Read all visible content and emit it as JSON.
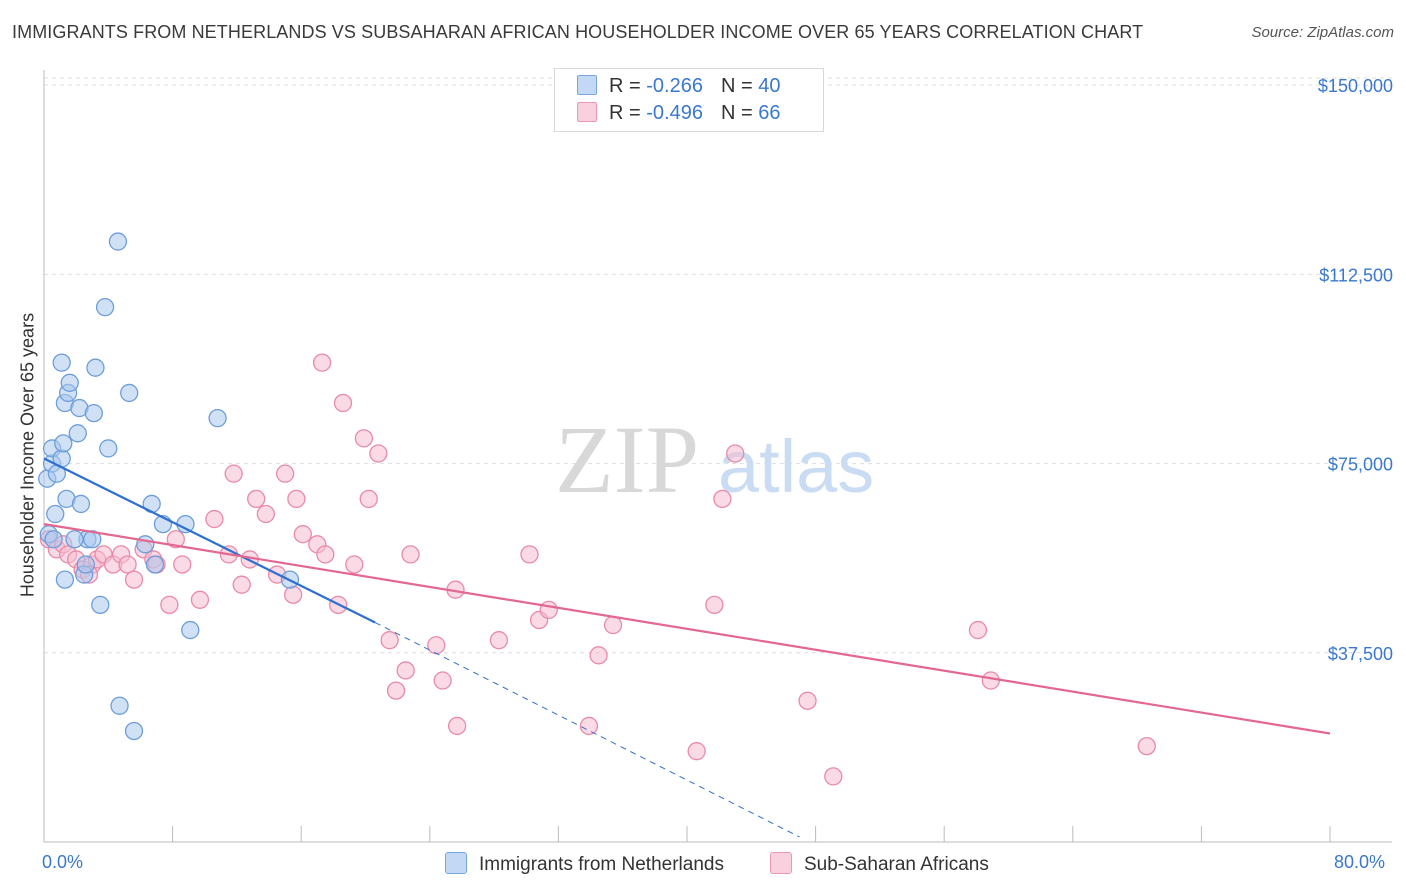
{
  "header": {
    "title": "IMMIGRANTS FROM NETHERLANDS VS SUBSAHARAN AFRICAN HOUSEHOLDER INCOME OVER 65 YEARS CORRELATION CHART",
    "source": "Source: ZipAtlas.com"
  },
  "watermark": {
    "zip": "ZIP",
    "atlas": "atlas"
  },
  "colors": {
    "blue_fill": "#aac8ef",
    "blue_stroke": "#6d9edb",
    "blue_line": "#2f6fd0",
    "pink_fill": "#f6bcd0",
    "pink_stroke": "#e98aa9",
    "pink_line": "#e3678f",
    "axis_text": "#3a78d0",
    "grid": "#dddddd"
  },
  "legend_top": {
    "rows": [
      {
        "r_label": "R = ",
        "r_value": "-0.266",
        "n_label": "N = ",
        "n_value": "40"
      },
      {
        "r_label": "R = ",
        "r_value": "-0.496",
        "n_label": "N = ",
        "n_value": "66"
      }
    ]
  },
  "legend_bottom": {
    "series_a": "Immigrants from Netherlands",
    "series_b": "Sub-Saharan Africans"
  },
  "chart_data": {
    "type": "scatter",
    "title": "IMMIGRANTS FROM NETHERLANDS VS SUBSAHARAN AFRICAN HOUSEHOLDER INCOME OVER 65 YEARS CORRELATION CHART",
    "xlabel": "",
    "ylabel": "Householder Income Over 65 years",
    "xlim": [
      0,
      80
    ],
    "ylim": [
      0,
      153000
    ],
    "x_tick_labels": [
      "0.0%",
      "80.0%"
    ],
    "y_ticks": [
      37500,
      75000,
      112500,
      150000
    ],
    "y_tick_labels": [
      "$37,500",
      "$75,000",
      "$112,500",
      "$150,000"
    ],
    "grid": true,
    "series": [
      {
        "name": "Immigrants from Netherlands",
        "color": "#aac8ef",
        "points": [
          [
            0.2,
            72000
          ],
          [
            0.3,
            61000
          ],
          [
            0.5,
            75000
          ],
          [
            0.5,
            78000
          ],
          [
            0.7,
            65000
          ],
          [
            0.8,
            73000
          ],
          [
            1.1,
            76000
          ],
          [
            1.2,
            79000
          ],
          [
            1.3,
            52000
          ],
          [
            1.4,
            68000
          ],
          [
            1.3,
            87000
          ],
          [
            1.5,
            89000
          ],
          [
            1.6,
            91000
          ],
          [
            1.1,
            95000
          ],
          [
            2.1,
            81000
          ],
          [
            2.2,
            86000
          ],
          [
            2.3,
            67000
          ],
          [
            2.5,
            53000
          ],
          [
            2.6,
            55000
          ],
          [
            2.7,
            60000
          ],
          [
            3.0,
            60000
          ],
          [
            3.1,
            85000
          ],
          [
            3.2,
            94000
          ],
          [
            3.5,
            47000
          ],
          [
            3.8,
            106000
          ],
          [
            4.0,
            78000
          ],
          [
            4.6,
            119000
          ],
          [
            4.7,
            27000
          ],
          [
            5.3,
            89000
          ],
          [
            5.6,
            22000
          ],
          [
            6.3,
            59000
          ],
          [
            6.7,
            67000
          ],
          [
            6.9,
            55000
          ],
          [
            7.4,
            63000
          ],
          [
            8.8,
            63000
          ],
          [
            9.1,
            42000
          ],
          [
            10.8,
            84000
          ],
          [
            15.3,
            52000
          ],
          [
            1.9,
            60000
          ],
          [
            0.6,
            60000
          ]
        ],
        "trend": {
          "x": [
            0.0,
            20.6
          ],
          "y": [
            76000,
            43500
          ]
        },
        "trend_ext": {
          "x": [
            20.6,
            47.0
          ],
          "y": [
            43500,
            1000
          ]
        }
      },
      {
        "name": "Sub-Saharan Africans",
        "color": "#f6bcd0",
        "points": [
          [
            0.3,
            60000
          ],
          [
            0.8,
            58000
          ],
          [
            1.2,
            59000
          ],
          [
            1.5,
            57000
          ],
          [
            2.0,
            56000
          ],
          [
            2.4,
            54000
          ],
          [
            3.0,
            55000
          ],
          [
            3.3,
            56000
          ],
          [
            3.7,
            57000
          ],
          [
            4.3,
            55000
          ],
          [
            4.8,
            57000
          ],
          [
            5.2,
            55000
          ],
          [
            5.6,
            52000
          ],
          [
            6.2,
            58000
          ],
          [
            6.8,
            56000
          ],
          [
            7.0,
            55000
          ],
          [
            7.8,
            47000
          ],
          [
            8.2,
            60000
          ],
          [
            8.6,
            55000
          ],
          [
            9.7,
            48000
          ],
          [
            10.6,
            64000
          ],
          [
            11.5,
            57000
          ],
          [
            11.8,
            73000
          ],
          [
            12.3,
            51000
          ],
          [
            12.8,
            56000
          ],
          [
            13.2,
            68000
          ],
          [
            13.8,
            65000
          ],
          [
            14.5,
            53000
          ],
          [
            15.0,
            73000
          ],
          [
            15.5,
            49000
          ],
          [
            15.7,
            68000
          ],
          [
            16.1,
            61000
          ],
          [
            17.0,
            59000
          ],
          [
            17.5,
            57000
          ],
          [
            18.3,
            47000
          ],
          [
            17.3,
            95000
          ],
          [
            18.6,
            87000
          ],
          [
            19.3,
            55000
          ],
          [
            19.9,
            80000
          ],
          [
            20.2,
            68000
          ],
          [
            20.8,
            77000
          ],
          [
            21.5,
            40000
          ],
          [
            21.9,
            30000
          ],
          [
            22.5,
            34000
          ],
          [
            22.8,
            57000
          ],
          [
            24.4,
            39000
          ],
          [
            24.8,
            32000
          ],
          [
            25.7,
            23000
          ],
          [
            25.6,
            50000
          ],
          [
            28.3,
            40000
          ],
          [
            30.2,
            57000
          ],
          [
            30.8,
            44000
          ],
          [
            31.4,
            46000
          ],
          [
            33.9,
            23000
          ],
          [
            34.5,
            37000
          ],
          [
            35.4,
            43000
          ],
          [
            40.6,
            18000
          ],
          [
            41.7,
            47000
          ],
          [
            42.2,
            68000
          ],
          [
            43.0,
            77000
          ],
          [
            47.5,
            28000
          ],
          [
            49.1,
            13000
          ],
          [
            58.1,
            42000
          ],
          [
            58.9,
            32000
          ],
          [
            68.6,
            19000
          ],
          [
            2.8,
            53000
          ]
        ],
        "trend": {
          "x": [
            0.0,
            80.0
          ],
          "y": [
            63000,
            21500
          ]
        }
      }
    ]
  }
}
